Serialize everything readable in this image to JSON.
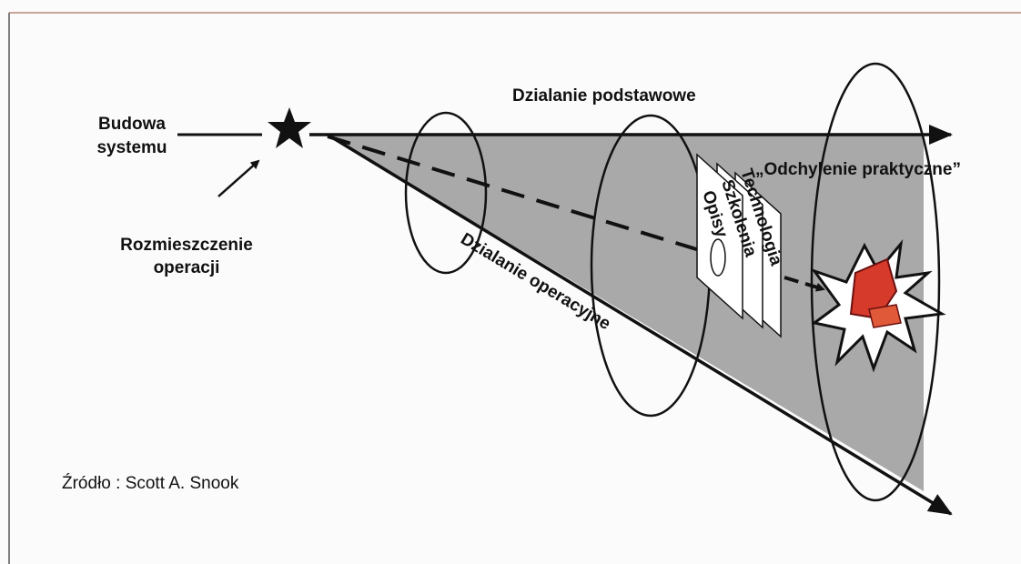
{
  "diagram": {
    "system_build": [
      "Budowa",
      "systemu"
    ],
    "deployment": [
      "Rozmieszczenie",
      "operacji"
    ],
    "baseline_operation": "Dzialanie podstawowe",
    "practical_drift": "„Odchylenie praktyczne”",
    "operational_action": "Dzialanie operacyjne",
    "layers": [
      "Opisy",
      "Szkolenia",
      "Technologia"
    ],
    "source": "Źródło : Scott A. Snook"
  }
}
